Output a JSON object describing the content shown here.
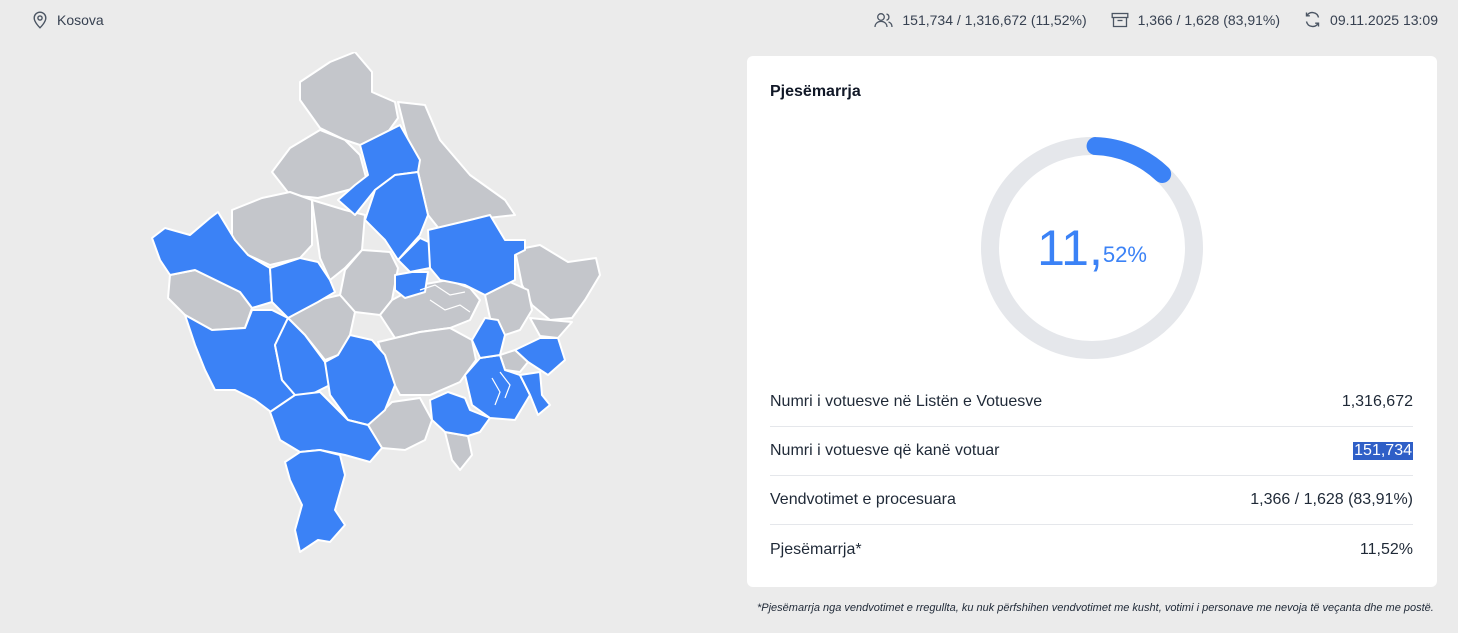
{
  "topbar": {
    "location": "Kosova",
    "voters": "151,734 / 1,316,672 (11,52%)",
    "stations": "1,366 / 1,628 (83,91%)",
    "updated": "09.11.2025 13:09",
    "icons": [
      "location-pin-icon",
      "users-icon",
      "ballot-box-icon",
      "refresh-icon"
    ]
  },
  "map": {
    "colors": {
      "highlight": "#3b82f6",
      "default": "#c4c6cb",
      "border": "#ffffff"
    }
  },
  "card": {
    "title": "Pjesëmarrja",
    "donut": {
      "value_int": "11",
      "value_sep": ",",
      "value_dec": "52%",
      "percent": 11.52,
      "accent": "#3b82f6",
      "track": "#e5e7eb"
    },
    "rows": [
      {
        "label": "Numri i votuesve në Listën e Votuesve",
        "value": "1,316,672"
      },
      {
        "label": "Numri i votuesve që kanë votuar",
        "value": "151,734"
      },
      {
        "label": "Vendvotimet e procesuara",
        "value": "1,366 / 1,628 (83,91%)"
      },
      {
        "label": "Pjesëmarrja*",
        "value": "11,52%"
      }
    ]
  },
  "footnote": "*Pjesëmarrja nga vendvotimet e rregullta, ku nuk përfshihen vendvotimet me kusht, votimi i personave me nevoja të veçanta dhe me postë."
}
